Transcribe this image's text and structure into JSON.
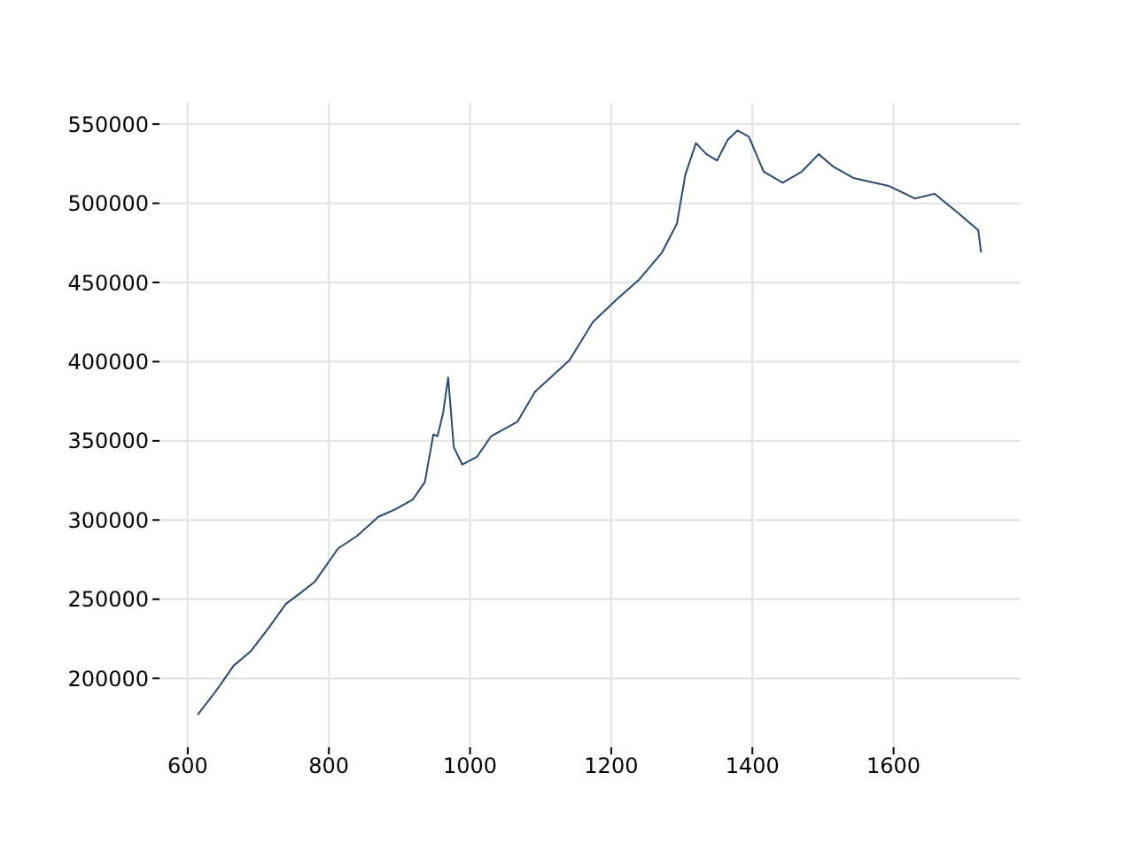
{
  "chart_data": {
    "type": "line",
    "x": [
      614,
      640,
      665,
      689,
      715,
      739,
      760,
      780,
      813,
      840,
      870,
      895,
      919,
      936,
      948,
      954,
      962,
      969,
      977,
      989,
      1010,
      1030,
      1067,
      1092,
      1141,
      1174,
      1207,
      1240,
      1272,
      1293,
      1305,
      1320,
      1335,
      1350,
      1365,
      1379,
      1395,
      1416,
      1443,
      1470,
      1494,
      1515,
      1543,
      1593,
      1630,
      1658,
      1691,
      1720,
      1724
    ],
    "series": [
      {
        "color": "#2d4a6e",
        "values": [
          177000,
          192000,
          208000,
          217000,
          232000,
          247000,
          254000,
          261000,
          282000,
          290000,
          302000,
          307000,
          313000,
          324000,
          354000,
          353000,
          368000,
          390000,
          346000,
          335000,
          340000,
          353000,
          362000,
          381000,
          401000,
          425000,
          439000,
          452000,
          469000,
          487000,
          518000,
          538000,
          531000,
          527000,
          540000,
          546000,
          542000,
          520000,
          513000,
          520000,
          531000,
          523000,
          516000,
          511000,
          503000,
          506000,
          494000,
          483000,
          469000
        ]
      }
    ],
    "xlim": [
      560,
      1780
    ],
    "xticks": [
      600,
      800,
      1000,
      1200,
      1400,
      1600
    ],
    "ylim": [
      156500,
      563500
    ],
    "yticks": [
      200000,
      250000,
      300000,
      350000,
      400000,
      450000,
      500000,
      550000
    ],
    "grid": true,
    "marker": "none",
    "line_style": "solid"
  }
}
